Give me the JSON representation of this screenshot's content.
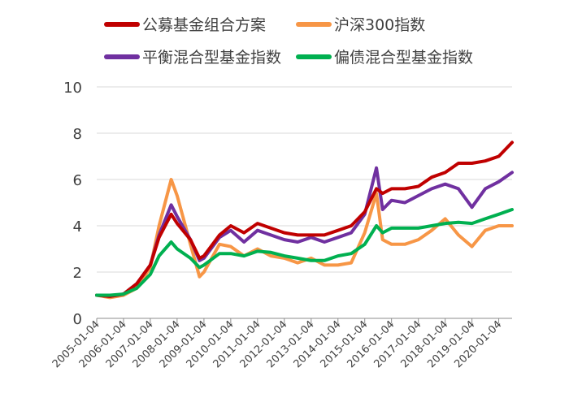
{
  "chart_data": {
    "type": "line",
    "title": "",
    "xlabel": "",
    "ylabel": "",
    "ylim": [
      0,
      10
    ],
    "yticks": [
      0,
      2,
      4,
      6,
      8,
      10
    ],
    "grid": "horizontal",
    "legend_position": "top",
    "x": [
      "2005-01-04",
      "2005-07-04",
      "2006-01-04",
      "2006-07-04",
      "2007-01-04",
      "2007-05-04",
      "2007-10-16",
      "2008-01-04",
      "2008-07-04",
      "2008-11-04",
      "2009-01-04",
      "2009-08-04",
      "2010-01-04",
      "2010-07-04",
      "2011-01-04",
      "2011-07-04",
      "2012-01-04",
      "2012-07-04",
      "2013-01-04",
      "2013-07-04",
      "2014-01-04",
      "2014-07-04",
      "2015-01-04",
      "2015-06-12",
      "2015-09-04",
      "2016-01-04",
      "2016-07-04",
      "2017-01-04",
      "2017-07-04",
      "2018-01-04",
      "2018-07-04",
      "2019-01-04",
      "2019-07-04",
      "2020-01-04",
      "2020-07-04"
    ],
    "x_tick_labels": [
      "2005-01-04",
      "2006-01-04",
      "2007-01-04",
      "2008-01-04",
      "2009-01-04",
      "2010-01-04",
      "2011-01-04",
      "2012-01-04",
      "2013-01-04",
      "2014-01-04",
      "2015-01-04",
      "2016-01-04",
      "2017-01-04",
      "2018-01-04",
      "2019-01-04",
      "2020-01-04"
    ],
    "series": [
      {
        "name": "公募基金组合方案",
        "color": "#c00000",
        "values": [
          1.0,
          0.95,
          1.05,
          1.5,
          2.3,
          3.5,
          4.5,
          4.1,
          3.4,
          2.6,
          2.7,
          3.6,
          4.0,
          3.7,
          4.1,
          3.9,
          3.7,
          3.6,
          3.6,
          3.6,
          3.8,
          4.0,
          4.6,
          5.6,
          5.4,
          5.6,
          5.6,
          5.7,
          6.1,
          6.3,
          6.7,
          6.7,
          6.8,
          7.0,
          7.6
        ]
      },
      {
        "name": "沪深300指数",
        "color": "#f79646",
        "values": [
          1.0,
          0.9,
          1.0,
          1.3,
          2.2,
          4.0,
          6.0,
          5.3,
          3.2,
          1.8,
          2.0,
          3.2,
          3.1,
          2.7,
          3.0,
          2.7,
          2.6,
          2.4,
          2.6,
          2.3,
          2.3,
          2.4,
          3.7,
          5.4,
          3.4,
          3.2,
          3.2,
          3.4,
          3.8,
          4.3,
          3.6,
          3.1,
          3.8,
          4.0,
          4.0
        ]
      },
      {
        "name": "平衡混合型基金指数",
        "color": "#7030a0",
        "values": [
          1.0,
          0.95,
          1.05,
          1.5,
          2.3,
          3.6,
          4.9,
          4.4,
          3.4,
          2.5,
          2.6,
          3.5,
          3.8,
          3.3,
          3.8,
          3.6,
          3.4,
          3.3,
          3.5,
          3.3,
          3.5,
          3.7,
          4.5,
          6.5,
          4.7,
          5.1,
          5.0,
          5.3,
          5.6,
          5.8,
          5.6,
          4.8,
          5.6,
          5.9,
          6.3
        ]
      },
      {
        "name": "偏债混合型基金指数",
        "color": "#00b050",
        "values": [
          1.0,
          1.0,
          1.05,
          1.3,
          1.9,
          2.7,
          3.3,
          3.0,
          2.6,
          2.2,
          2.3,
          2.8,
          2.8,
          2.7,
          2.9,
          2.85,
          2.7,
          2.6,
          2.5,
          2.5,
          2.7,
          2.8,
          3.2,
          4.0,
          3.7,
          3.9,
          3.9,
          3.9,
          4.0,
          4.1,
          4.15,
          4.1,
          4.3,
          4.5,
          4.7
        ]
      }
    ]
  }
}
